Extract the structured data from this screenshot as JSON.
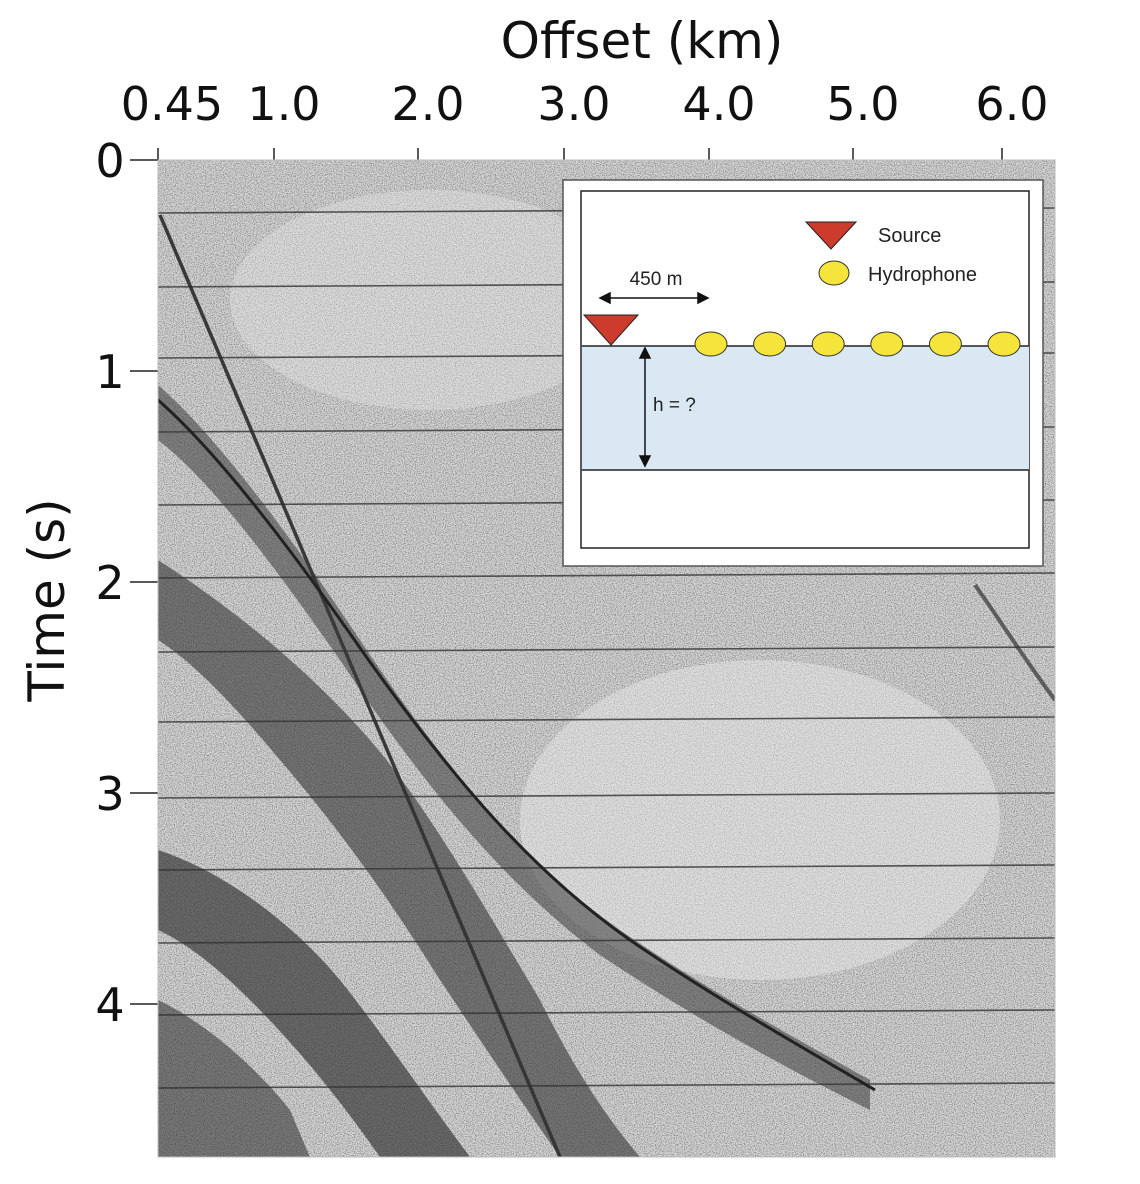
{
  "axes": {
    "x_title": "Offset (km)",
    "y_title": "Time (s)",
    "x_ticks": [
      {
        "label": "0.45",
        "value": 0.45
      },
      {
        "label": "1.0",
        "value": 1.0
      },
      {
        "label": "2.0",
        "value": 2.0
      },
      {
        "label": "3.0",
        "value": 3.0
      },
      {
        "label": "4.0",
        "value": 4.0
      },
      {
        "label": "5.0",
        "value": 5.0
      },
      {
        "label": "6.0",
        "value": 6.0
      }
    ],
    "y_ticks": [
      {
        "label": "0",
        "value": 0
      },
      {
        "label": "1",
        "value": 1
      },
      {
        "label": "2",
        "value": 2
      },
      {
        "label": "3",
        "value": 3
      },
      {
        "label": "4",
        "value": 4
      }
    ]
  },
  "inset": {
    "legend_source": "Source",
    "legend_hydrophone": "Hydrophone",
    "offset_label": "450 m",
    "depth_label": "h = ?",
    "hydrophone_count": 6
  },
  "colors": {
    "source": "#cc3b2c",
    "hydrophone": "#f5e53a",
    "water": "#d9e8f3",
    "record_bg": "#d9d9d9",
    "record_ink": "#2f2f2f"
  }
}
